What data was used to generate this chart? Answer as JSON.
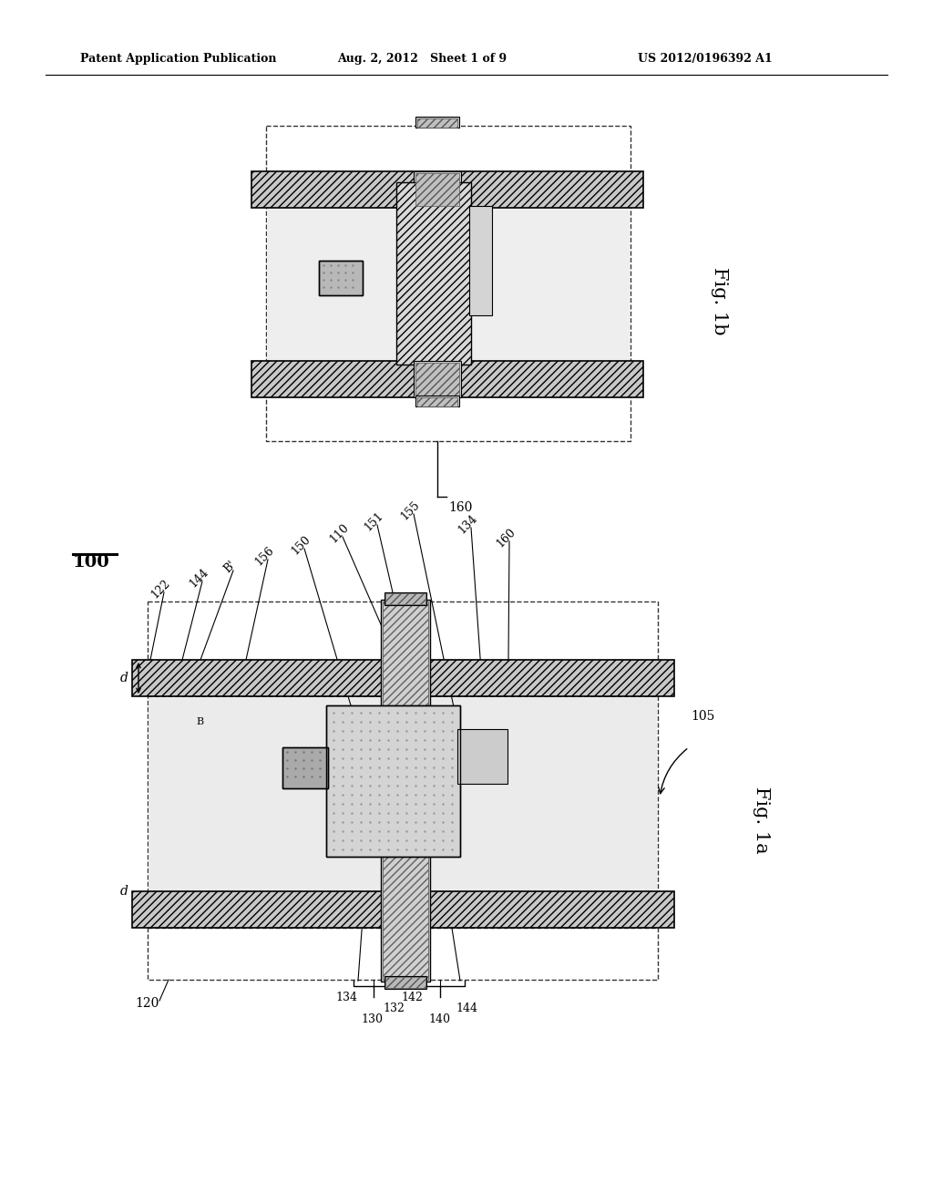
{
  "header_left": "Patent Application Publication",
  "header_center": "Aug. 2, 2012   Sheet 1 of 9",
  "header_right": "US 2012/0196392 A1",
  "fig1b_label": "Fig. 1b",
  "fig1a_label": "Fig. 1a",
  "ref_100": "100",
  "bg_color": "#ffffff",
  "line_color": "#000000"
}
